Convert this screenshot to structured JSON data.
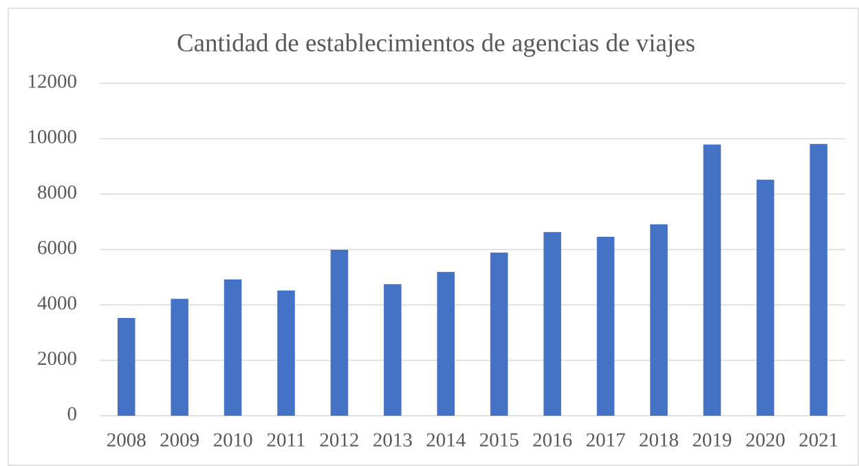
{
  "chart_data": {
    "type": "bar",
    "title": "Cantidad de establecimientos de agencias de viajes",
    "categories": [
      "2008",
      "2009",
      "2010",
      "2011",
      "2012",
      "2013",
      "2014",
      "2015",
      "2016",
      "2017",
      "2018",
      "2019",
      "2020",
      "2021"
    ],
    "values": [
      3530,
      4220,
      4920,
      4520,
      5990,
      4750,
      5190,
      5890,
      6630,
      6460,
      6910,
      9790,
      8520,
      9810
    ],
    "color": "#4472c4",
    "ylim": [
      0,
      12000
    ],
    "yticks": [
      0,
      2000,
      4000,
      6000,
      8000,
      10000,
      12000
    ],
    "grid": true
  }
}
